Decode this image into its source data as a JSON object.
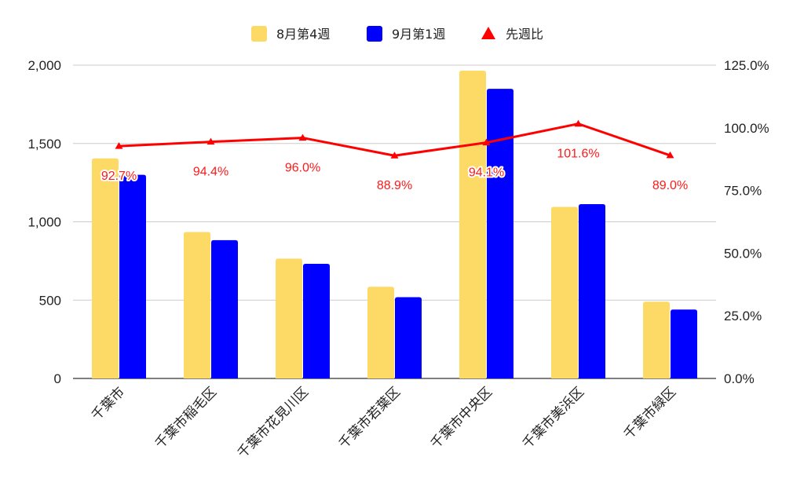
{
  "chart_data": {
    "type": "bar",
    "categories": [
      "千葉市",
      "千葉市稲毛区",
      "千葉市花見川区",
      "千葉市若葉区",
      "千葉市中央区",
      "千葉市美浜区",
      "千葉市緑区"
    ],
    "series": [
      {
        "name": "8月第4週",
        "type": "bar",
        "axis": "left",
        "color": "#fdd966",
        "values": [
          1405,
          935,
          765,
          585,
          1965,
          1095,
          490
        ]
      },
      {
        "name": "9月第1週",
        "type": "bar",
        "axis": "left",
        "color": "#0000ff",
        "values": [
          1300,
          883,
          732,
          519,
          1849,
          1113,
          440
        ]
      },
      {
        "name": "先週比",
        "type": "line",
        "axis": "right",
        "color": "#ff0000",
        "marker": "triangle",
        "values": [
          92.7,
          94.4,
          96.0,
          88.9,
          94.1,
          101.6,
          89.0
        ],
        "labels": [
          "92.7%",
          "94.4%",
          "96.0%",
          "88.9%",
          "94.1%",
          "101.6%",
          "89.0%"
        ]
      }
    ],
    "left_axis": {
      "ylim": [
        0,
        2000
      ],
      "ticks": [
        "0",
        "500",
        "1,000",
        "1,500",
        "2,000"
      ],
      "tick_values": [
        0,
        500,
        1000,
        1500,
        2000
      ]
    },
    "right_axis": {
      "ylim": [
        0,
        125
      ],
      "ticks": [
        "0.0%",
        "25.0%",
        "50.0%",
        "75.0%",
        "100.0%",
        "125.0%"
      ],
      "tick_values": [
        0,
        25,
        50,
        75,
        100,
        125
      ]
    },
    "grid": true,
    "legend_position": "top-center",
    "title": "",
    "xlabel": "",
    "ylabel": ""
  }
}
